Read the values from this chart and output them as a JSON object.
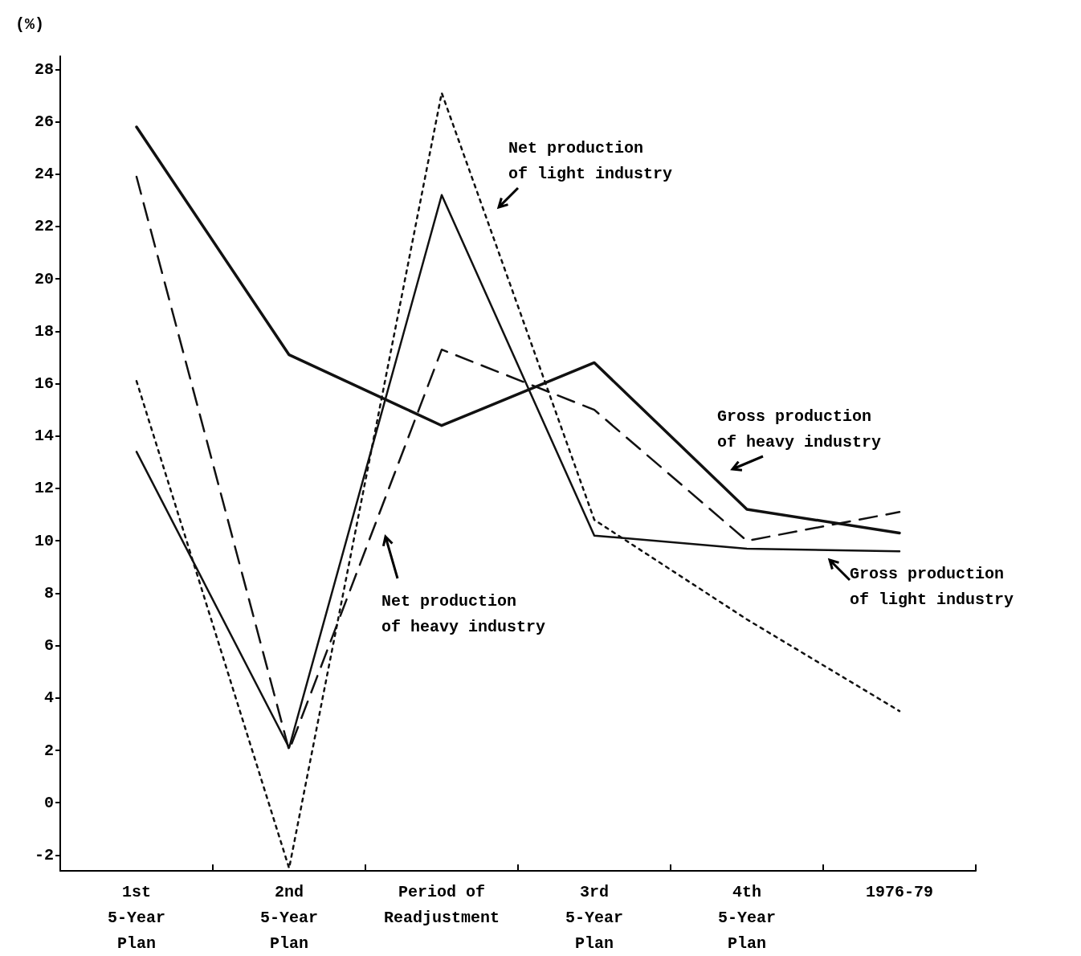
{
  "chart_data": {
    "type": "line",
    "ylabel": "(%)",
    "categories": [
      "1st\n5-Year\nPlan",
      "2nd\n5-Year\nPlan",
      "Period of\nReadjustment",
      "3rd\n5-Year\nPlan",
      "4th\n5-Year\nPlan",
      "1976-79"
    ],
    "series": [
      {
        "color": "#111111",
        "line_style": "solid",
        "values": [
          25.8,
          17.1,
          14.4,
          16.8,
          11.2,
          10.3
        ]
      },
      {
        "color": "#111111",
        "line_style": "solid",
        "values": [
          13.4,
          2.1,
          23.2,
          10.2,
          9.7,
          9.6
        ]
      },
      {
        "color": "#111111",
        "line_style": "dashed",
        "values": [
          23.9,
          2.0,
          17.3,
          15.0,
          10.0,
          11.1
        ]
      },
      {
        "color": "#111111",
        "line_style": "dotted",
        "values": [
          16.1,
          -2.5,
          27.1,
          10.8,
          7.0,
          3.5
        ]
      }
    ],
    "ylim": [
      -2.6,
      28.5
    ],
    "yticks": [
      -2,
      0,
      2,
      4,
      6,
      8,
      10,
      12,
      14,
      16,
      18,
      20,
      22,
      24,
      26,
      28
    ],
    "grid": false,
    "marker": "none",
    "annotations": [
      "Net production\nof light industry",
      "Net production\nof heavy industry",
      "Gross production\nof heavy industry",
      "Gross production\nof light industry"
    ]
  }
}
